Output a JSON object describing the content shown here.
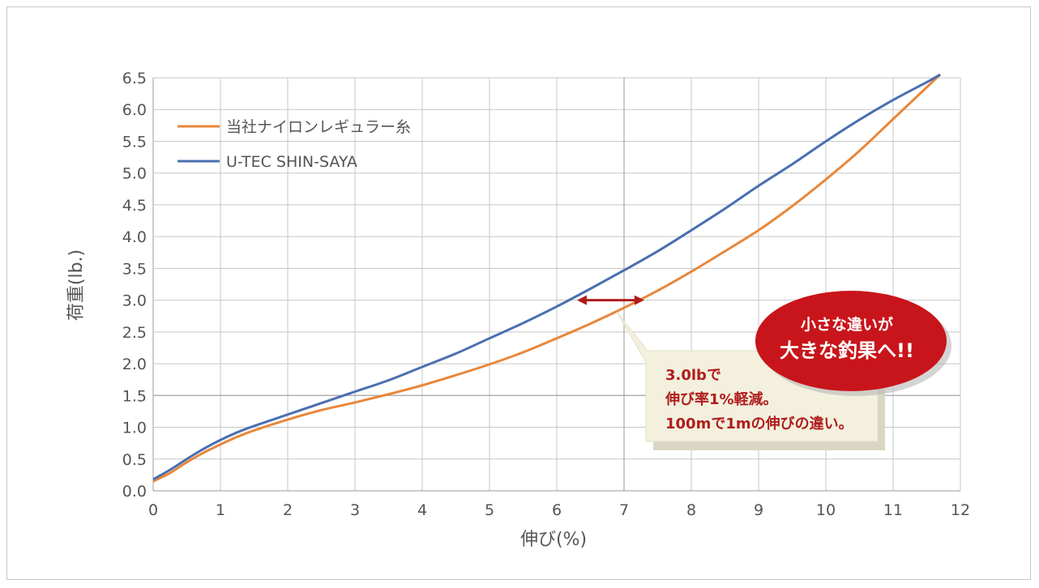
{
  "chart_data": {
    "type": "line",
    "xlabel": "伸び(%)",
    "ylabel": "荷重(lb.)",
    "xlim": [
      0,
      12
    ],
    "ylim": [
      0,
      6.5
    ],
    "xticks": [
      "0",
      "1",
      "2",
      "3",
      "4",
      "5",
      "6",
      "7",
      "8",
      "9",
      "10",
      "11",
      "12"
    ],
    "yticks": [
      "0.0",
      "0.5",
      "1.0",
      "1.5",
      "2.0",
      "2.5",
      "3.0",
      "3.5",
      "4.0",
      "4.5",
      "5.0",
      "5.5",
      "6.0",
      "6.5"
    ],
    "grid": true,
    "legend_position": "top-left",
    "series": [
      {
        "name": "当社ナイロンレギュラー糸",
        "color": "#e8873a",
        "x": [
          0,
          0.25,
          0.5,
          0.75,
          1,
          1.25,
          1.5,
          2,
          2.5,
          3,
          3.5,
          4,
          4.5,
          5,
          5.5,
          6,
          6.5,
          7,
          7.5,
          8,
          8.5,
          9,
          9.5,
          10,
          10.5,
          11,
          11.5,
          11.7
        ],
        "y": [
          0.15,
          0.28,
          0.45,
          0.6,
          0.73,
          0.85,
          0.95,
          1.12,
          1.27,
          1.39,
          1.52,
          1.66,
          1.82,
          1.99,
          2.18,
          2.4,
          2.63,
          2.88,
          3.15,
          3.45,
          3.77,
          4.1,
          4.48,
          4.9,
          5.35,
          5.85,
          6.35,
          6.55
        ]
      },
      {
        "name": "U-TEC SHIN-SAYA",
        "color": "#4a6fb0",
        "x": [
          0,
          0.25,
          0.5,
          0.75,
          1,
          1.25,
          1.5,
          2,
          2.5,
          3,
          3.5,
          4,
          4.5,
          5,
          5.5,
          6,
          6.5,
          7,
          7.5,
          8,
          8.5,
          9,
          9.5,
          10,
          10.5,
          11,
          11.5,
          11.7
        ],
        "y": [
          0.18,
          0.33,
          0.5,
          0.66,
          0.8,
          0.92,
          1.02,
          1.2,
          1.38,
          1.56,
          1.74,
          1.95,
          2.16,
          2.4,
          2.64,
          2.9,
          3.18,
          3.47,
          3.77,
          4.1,
          4.44,
          4.8,
          5.14,
          5.5,
          5.84,
          6.15,
          6.43,
          6.55
        ]
      }
    ],
    "annotations": {
      "arrow": {
        "x_from": 6.3,
        "x_to": 7.3,
        "y": 3.0,
        "color": "#b01d1d"
      },
      "note_lines": [
        "3.0lbで",
        "伸び率1%軽減。",
        "100mで1mの伸びの違い。"
      ],
      "bubble_lines": [
        "小さな違いが",
        "大きな釣果へ!!"
      ],
      "bubble_color": "#c8151b"
    }
  }
}
